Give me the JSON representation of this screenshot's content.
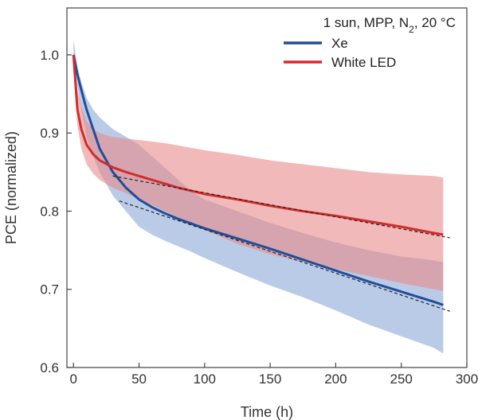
{
  "chart_data": {
    "type": "line",
    "xlabel": "Time (h)",
    "ylabel": "PCE (normalized)",
    "xlim": [
      -5,
      300
    ],
    "ylim": [
      0.6,
      1.06
    ],
    "xticks": [
      0,
      50,
      100,
      150,
      200,
      250,
      300
    ],
    "yticks": [
      0.6,
      0.7,
      0.8,
      0.9,
      1.0
    ],
    "xtick_labels": [
      "0",
      "50",
      "100",
      "150",
      "200",
      "250",
      "300"
    ],
    "ytick_labels": [
      "0.6",
      "0.7",
      "0.8",
      "0.9",
      "1.0"
    ],
    "legend_title": {
      "pre": "1 sun, MPP, N",
      "sub": "2",
      "post": ", 20 °C"
    },
    "legend_position": "top-right",
    "series": [
      {
        "name": "Xe",
        "color": "#1f4e9a",
        "band_color": "#8aa9d6",
        "x": [
          0,
          3,
          6,
          10,
          15,
          20,
          30,
          40,
          50,
          60,
          70,
          80,
          90,
          100,
          125,
          150,
          175,
          200,
          225,
          250,
          275,
          282
        ],
        "values": [
          1.0,
          0.975,
          0.955,
          0.93,
          0.905,
          0.88,
          0.85,
          0.83,
          0.815,
          0.805,
          0.797,
          0.79,
          0.784,
          0.778,
          0.765,
          0.752,
          0.738,
          0.724,
          0.71,
          0.697,
          0.684,
          0.68
        ],
        "band_upper": [
          1.02,
          0.985,
          0.965,
          0.945,
          0.93,
          0.92,
          0.905,
          0.895,
          0.885,
          0.87,
          0.855,
          0.84,
          0.825,
          0.815,
          0.8,
          0.785,
          0.772,
          0.76,
          0.75,
          0.742,
          0.737,
          0.735
        ],
        "band_lower": [
          1.0,
          0.96,
          0.93,
          0.895,
          0.87,
          0.85,
          0.82,
          0.8,
          0.78,
          0.77,
          0.762,
          0.755,
          0.748,
          0.74,
          0.722,
          0.705,
          0.69,
          0.673,
          0.655,
          0.64,
          0.625,
          0.618
        ]
      },
      {
        "name": "White LED",
        "color": "#d42b2b",
        "band_color": "#e88a8a",
        "x": [
          0,
          3,
          6,
          10,
          15,
          20,
          30,
          40,
          50,
          60,
          70,
          80,
          90,
          100,
          125,
          150,
          175,
          200,
          225,
          250,
          275,
          282
        ],
        "values": [
          1.0,
          0.93,
          0.905,
          0.885,
          0.873,
          0.865,
          0.856,
          0.85,
          0.845,
          0.84,
          0.835,
          0.83,
          0.826,
          0.822,
          0.815,
          0.807,
          0.8,
          0.794,
          0.787,
          0.78,
          0.772,
          0.77
        ],
        "band_upper": [
          1.0,
          0.955,
          0.935,
          0.915,
          0.905,
          0.9,
          0.895,
          0.893,
          0.891,
          0.889,
          0.887,
          0.884,
          0.881,
          0.878,
          0.872,
          0.865,
          0.86,
          0.855,
          0.85,
          0.847,
          0.845,
          0.843
        ],
        "band_lower": [
          0.99,
          0.91,
          0.88,
          0.86,
          0.848,
          0.84,
          0.83,
          0.823,
          0.815,
          0.808,
          0.8,
          0.792,
          0.784,
          0.776,
          0.758,
          0.745,
          0.735,
          0.726,
          0.717,
          0.708,
          0.7,
          0.698
        ]
      }
    ],
    "fits": [
      {
        "x": [
          30,
          287
        ],
        "values": [
          0.845,
          0.766
        ]
      },
      {
        "x": [
          35,
          287
        ],
        "values": [
          0.813,
          0.672
        ]
      }
    ]
  }
}
